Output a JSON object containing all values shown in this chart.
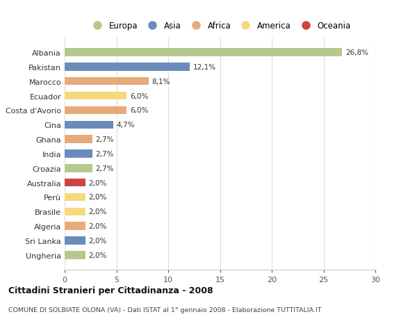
{
  "countries": [
    "Albania",
    "Pakistan",
    "Marocco",
    "Ecuador",
    "Costa d'Avorio",
    "Cina",
    "Ghana",
    "India",
    "Croazia",
    "Australia",
    "Perù",
    "Brasile",
    "Algeria",
    "Sri Lanka",
    "Ungheria"
  ],
  "values": [
    26.8,
    12.1,
    8.1,
    6.0,
    6.0,
    4.7,
    2.7,
    2.7,
    2.7,
    2.0,
    2.0,
    2.0,
    2.0,
    2.0,
    2.0
  ],
  "labels": [
    "26,8%",
    "12,1%",
    "8,1%",
    "6,0%",
    "6,0%",
    "4,7%",
    "2,7%",
    "2,7%",
    "2,7%",
    "2,0%",
    "2,0%",
    "2,0%",
    "2,0%",
    "2,0%",
    "2,0%"
  ],
  "colors": [
    "#b5c98e",
    "#6b8cba",
    "#e8aa7a",
    "#f5d97e",
    "#e8aa7a",
    "#6b8cba",
    "#e8aa7a",
    "#6b8cba",
    "#b5c98e",
    "#cc4444",
    "#f5d97e",
    "#f5d97e",
    "#e8aa7a",
    "#6b8cba",
    "#b5c98e"
  ],
  "legend_labels": [
    "Europa",
    "Asia",
    "Africa",
    "America",
    "Oceania"
  ],
  "legend_colors": [
    "#b5c98e",
    "#6b8cba",
    "#e8aa7a",
    "#f5d97e",
    "#cc4444"
  ],
  "title1": "Cittadini Stranieri per Cittadinanza - 2008",
  "title2": "COMUNE DI SOLBIATE OLONA (VA) - Dati ISTAT al 1° gennaio 2008 - Elaborazione TUTTITALIA.IT",
  "xlim": [
    0,
    30
  ],
  "xticks": [
    0,
    5,
    10,
    15,
    20,
    25,
    30
  ],
  "background_color": "#ffffff",
  "grid_color": "#dddddd",
  "bar_height": 0.55
}
